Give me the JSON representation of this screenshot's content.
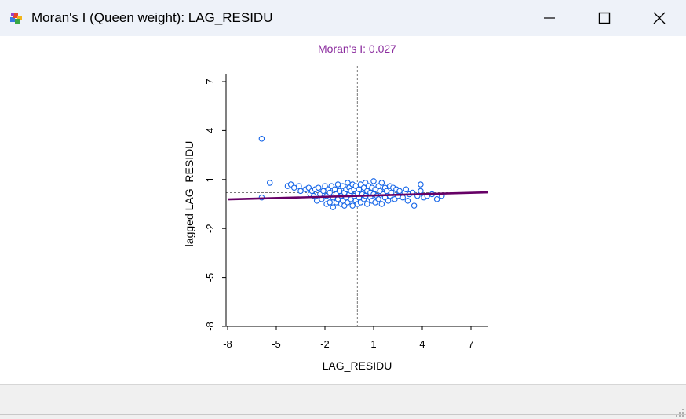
{
  "window": {
    "title": "Moran's I (Queen weight): LAG_RESIDU",
    "icon": "geoda-app-icon",
    "buttons": [
      "minimize-icon",
      "maximize-icon",
      "close-icon"
    ]
  },
  "chart_data": {
    "type": "scatter",
    "title": "Moran's I: 0.027",
    "xlabel": "LAG_RESIDU",
    "ylabel": "lagged LAG_RESIDU",
    "xlim": [
      -8,
      8
    ],
    "ylim": [
      -8,
      8
    ],
    "xticks": [
      "-8",
      "-5",
      "-2",
      "1",
      "4",
      "7"
    ],
    "yticks": [
      "-8",
      "-5",
      "-2",
      "1",
      "4",
      "7"
    ],
    "grid": false,
    "colors": {
      "title": "#8b2c9e",
      "points": "#1565e8",
      "regression": "#660066",
      "reference": "#777777"
    },
    "mean_lines": {
      "x": 0,
      "y": 0
    },
    "regression": {
      "slope": 0.027,
      "intercept": 0.0
    },
    "points": [
      [
        -5.9,
        3.5
      ],
      [
        -5.9,
        -0.1
      ],
      [
        -5.4,
        0.8
      ],
      [
        -4.3,
        0.6
      ],
      [
        -4.1,
        0.7
      ],
      [
        -3.9,
        0.5
      ],
      [
        -3.6,
        0.6
      ],
      [
        -3.5,
        0.3
      ],
      [
        -3.2,
        0.4
      ],
      [
        -3.0,
        0.5
      ],
      [
        -2.9,
        0.1
      ],
      [
        -2.8,
        0.3
      ],
      [
        -2.7,
        0.0
      ],
      [
        -2.6,
        0.4
      ],
      [
        -2.5,
        -0.3
      ],
      [
        -2.4,
        0.5
      ],
      [
        -2.3,
        0.1
      ],
      [
        -2.2,
        -0.2
      ],
      [
        -2.1,
        0.3
      ],
      [
        -2.0,
        0.6
      ],
      [
        -1.9,
        0.0
      ],
      [
        -1.9,
        -0.5
      ],
      [
        -1.8,
        0.4
      ],
      [
        -1.7,
        -0.4
      ],
      [
        -1.7,
        0.2
      ],
      [
        -1.6,
        0.6
      ],
      [
        -1.5,
        -0.1
      ],
      [
        -1.5,
        -0.7
      ],
      [
        -1.4,
        0.4
      ],
      [
        -1.3,
        0.1
      ],
      [
        -1.3,
        -0.4
      ],
      [
        -1.2,
        0.7
      ],
      [
        -1.2,
        -0.2
      ],
      [
        -1.1,
        0.3
      ],
      [
        -1.0,
        -0.5
      ],
      [
        -1.0,
        0.0
      ],
      [
        -0.9,
        0.6
      ],
      [
        -0.9,
        -0.3
      ],
      [
        -0.8,
        0.2
      ],
      [
        -0.8,
        -0.6
      ],
      [
        -0.7,
        0.4
      ],
      [
        -0.7,
        -0.1
      ],
      [
        -0.6,
        0.8
      ],
      [
        -0.6,
        -0.4
      ],
      [
        -0.5,
        0.1
      ],
      [
        -0.5,
        0.5
      ],
      [
        -0.4,
        -0.2
      ],
      [
        -0.4,
        0.3
      ],
      [
        -0.3,
        -0.6
      ],
      [
        -0.3,
        0.7
      ],
      [
        -0.2,
        0.0
      ],
      [
        -0.2,
        0.4
      ],
      [
        -0.1,
        -0.3
      ],
      [
        -0.1,
        0.6
      ],
      [
        0.0,
        0.2
      ],
      [
        0.0,
        -0.5
      ],
      [
        0.1,
        0.4
      ],
      [
        0.1,
        -0.1
      ],
      [
        0.2,
        0.7
      ],
      [
        0.2,
        -0.4
      ],
      [
        0.3,
        0.1
      ],
      [
        0.4,
        0.5
      ],
      [
        0.4,
        -0.2
      ],
      [
        0.5,
        0.8
      ],
      [
        0.5,
        0.0
      ],
      [
        0.6,
        -0.5
      ],
      [
        0.6,
        0.3
      ],
      [
        0.7,
        0.6
      ],
      [
        0.8,
        -0.1
      ],
      [
        0.8,
        0.2
      ],
      [
        0.9,
        0.5
      ],
      [
        0.9,
        -0.3
      ],
      [
        1.0,
        0.9
      ],
      [
        1.0,
        0.1
      ],
      [
        1.1,
        -0.4
      ],
      [
        1.1,
        0.4
      ],
      [
        1.2,
        0.0
      ],
      [
        1.3,
        0.6
      ],
      [
        1.3,
        -0.2
      ],
      [
        1.4,
        0.3
      ],
      [
        1.5,
        0.8
      ],
      [
        1.5,
        -0.5
      ],
      [
        1.6,
        0.1
      ],
      [
        1.7,
        0.5
      ],
      [
        1.7,
        -0.1
      ],
      [
        1.8,
        0.3
      ],
      [
        1.9,
        -0.3
      ],
      [
        2.0,
        0.6
      ],
      [
        2.0,
        0.0
      ],
      [
        2.1,
        0.2
      ],
      [
        2.2,
        0.5
      ],
      [
        2.3,
        -0.2
      ],
      [
        2.4,
        0.4
      ],
      [
        2.5,
        0.0
      ],
      [
        2.6,
        0.3
      ],
      [
        2.8,
        -0.1
      ],
      [
        2.9,
        0.2
      ],
      [
        3.0,
        0.4
      ],
      [
        3.1,
        -0.3
      ],
      [
        3.2,
        0.1
      ],
      [
        3.4,
        0.2
      ],
      [
        3.5,
        -0.6
      ],
      [
        3.7,
        0.0
      ],
      [
        3.9,
        0.3
      ],
      [
        3.9,
        0.7
      ],
      [
        4.1,
        -0.1
      ],
      [
        4.3,
        0.0
      ],
      [
        4.6,
        0.1
      ],
      [
        4.9,
        -0.2
      ],
      [
        5.2,
        0.0
      ]
    ]
  }
}
